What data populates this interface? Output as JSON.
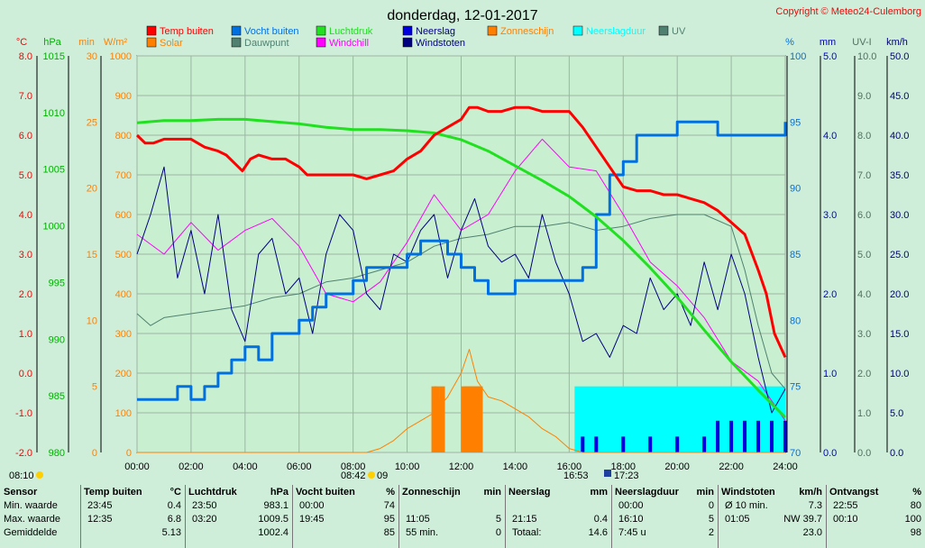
{
  "header": {
    "title": "donderdag, 12-01-2017",
    "copyright": "Copyright © Meteo24-Culemborg"
  },
  "legend": [
    {
      "label": "Temp buiten",
      "color": "#ff0000"
    },
    {
      "label": "Vocht buiten",
      "color": "#0070e0"
    },
    {
      "label": "Luchtdruk",
      "color": "#20e020"
    },
    {
      "label": "Neerslag",
      "color": "#0000dd"
    },
    {
      "label": "Zonneschijn",
      "color": "#ff8000"
    },
    {
      "label": "Neerslagduur",
      "color": "#00ffff"
    },
    {
      "label": "UV",
      "color": "#508070"
    },
    {
      "label": "Solar",
      "color": "#ff8000"
    },
    {
      "label": "Dauwpunt",
      "color": "#508070"
    },
    {
      "label": "Windchill",
      "color": "#ff00ff"
    },
    {
      "label": "Windstoten",
      "color": "#000080"
    }
  ],
  "axes": {
    "temp": {
      "unit": "°C",
      "ticks": [
        "8.0",
        "7.0",
        "6.0",
        "5.0",
        "4.0",
        "3.0",
        "2.0",
        "1.0",
        "0.0",
        "-1.0",
        "-2.0"
      ],
      "color": "#ff0000"
    },
    "pressure": {
      "unit": "hPa",
      "ticks": [
        "1015",
        "1010",
        "1005",
        "1000",
        "995",
        "990",
        "985",
        "980"
      ],
      "color": "#00b000"
    },
    "sunmin": {
      "unit": "min",
      "ticks": [
        "30",
        "25",
        "20",
        "15",
        "10",
        "5",
        "0"
      ],
      "color": "#ff8000"
    },
    "solar": {
      "unit": "W/m²",
      "ticks": [
        "1000",
        "900",
        "800",
        "700",
        "600",
        "500",
        "400",
        "300",
        "200",
        "100",
        "0"
      ],
      "color": "#ff8000"
    },
    "humidity": {
      "unit": "%",
      "ticks": [
        "100",
        "95",
        "90",
        "85",
        "80",
        "75",
        "70"
      ],
      "color": "#0070e0"
    },
    "rain": {
      "unit": "mm",
      "ticks": [
        "5.0",
        "4.0",
        "3.0",
        "2.0",
        "1.0",
        "0.0"
      ],
      "color": "#0000cc"
    },
    "uv": {
      "unit": "UV-I",
      "ticks": [
        "10.0",
        "9.0",
        "8.0",
        "7.0",
        "6.0",
        "5.0",
        "4.0",
        "3.0",
        "2.0",
        "1.0",
        "0.0"
      ],
      "color": "#507060"
    },
    "wind": {
      "unit": "km/h",
      "ticks": [
        "50.0",
        "45.0",
        "40.0",
        "35.0",
        "30.0",
        "25.0",
        "20.0",
        "15.0",
        "10.0",
        "5.0",
        "0.0"
      ],
      "color": "#000080"
    },
    "time_ticks": [
      "00:00",
      "02:00",
      "04:00",
      "06:00",
      "08:00",
      "10:00",
      "12:00",
      "14:00",
      "16:00",
      "18:00",
      "20:00",
      "22:00",
      "24:00"
    ]
  },
  "sun_markers": {
    "sunrise": "08:42",
    "sun_day": "09",
    "sunset": "16:53",
    "moon": "17:23",
    "moonrise": "08:10"
  },
  "chart_data": {
    "type": "line",
    "title": "donderdag, 12-01-2017",
    "x_unit": "hours",
    "x_range": [
      0,
      24
    ],
    "series": [
      {
        "name": "Temp buiten",
        "unit": "°C",
        "color": "#ff0000",
        "x": [
          0,
          0.3,
          0.6,
          1.0,
          1.5,
          2.0,
          2.5,
          3.0,
          3.3,
          3.6,
          3.9,
          4.2,
          4.5,
          5.0,
          5.5,
          6.0,
          6.3,
          6.6,
          7.0,
          7.5,
          8.0,
          8.5,
          9.0,
          9.5,
          10.0,
          10.5,
          11.0,
          11.5,
          12.0,
          12.3,
          12.6,
          13.0,
          13.5,
          14.0,
          14.5,
          15.0,
          15.5,
          16.0,
          16.5,
          17.0,
          17.5,
          18.0,
          18.5,
          19.0,
          19.5,
          20.0,
          20.5,
          21.0,
          21.5,
          22.0,
          22.5,
          23.0,
          23.3,
          23.6,
          24.0
        ],
        "y": [
          6.0,
          5.8,
          5.8,
          5.9,
          5.9,
          5.9,
          5.7,
          5.6,
          5.5,
          5.3,
          5.1,
          5.4,
          5.5,
          5.4,
          5.4,
          5.2,
          5.0,
          5.0,
          5.0,
          5.0,
          5.0,
          4.9,
          5.0,
          5.1,
          5.4,
          5.6,
          6.0,
          6.2,
          6.4,
          6.7,
          6.7,
          6.6,
          6.6,
          6.7,
          6.7,
          6.6,
          6.6,
          6.6,
          6.2,
          5.7,
          5.2,
          4.7,
          4.6,
          4.6,
          4.5,
          4.5,
          4.4,
          4.3,
          4.1,
          3.8,
          3.5,
          2.6,
          2.0,
          1.0,
          0.4
        ]
      },
      {
        "name": "Vocht buiten",
        "unit": "%",
        "color": "#0070e0",
        "x": [
          0,
          1.0,
          1.5,
          2.0,
          2.5,
          3.0,
          3.5,
          4.0,
          4.5,
          5.0,
          5.5,
          6.0,
          6.5,
          7.0,
          7.5,
          8.0,
          8.5,
          9.0,
          9.5,
          10.0,
          10.5,
          11.0,
          11.5,
          12.0,
          12.5,
          13.0,
          13.5,
          14.0,
          14.5,
          15.0,
          15.5,
          16.0,
          16.5,
          17.0,
          17.5,
          18.0,
          18.5,
          19.0,
          19.5,
          20.0,
          20.5,
          21.0,
          21.5,
          22.0,
          22.5,
          23.0,
          23.5,
          24.0
        ],
        "y": [
          74,
          74,
          75,
          74,
          75,
          76,
          77,
          78,
          77,
          79,
          79,
          80,
          81,
          82,
          82,
          83,
          84,
          84,
          84,
          85,
          86,
          86,
          85,
          84,
          83,
          82,
          82,
          83,
          83,
          83,
          83,
          83,
          84,
          88,
          91,
          92,
          94,
          94,
          94,
          95,
          95,
          95,
          94,
          94,
          94,
          94,
          94,
          95
        ]
      },
      {
        "name": "Luchtdruk",
        "unit": "hPa",
        "color": "#20e020",
        "x": [
          0,
          1,
          2,
          3,
          4,
          5,
          6,
          7,
          8,
          9,
          10,
          11,
          12,
          13,
          14,
          15,
          16,
          17,
          18,
          19,
          20,
          21,
          22,
          23,
          24
        ],
        "y": [
          1009.1,
          1009.3,
          1009.3,
          1009.4,
          1009.4,
          1009.2,
          1009.0,
          1008.7,
          1008.5,
          1008.5,
          1008.4,
          1008.2,
          1007.6,
          1006.6,
          1005.3,
          1004.0,
          1002.6,
          1000.8,
          998.7,
          996.3,
          993.7,
          990.8,
          988.0,
          985.5,
          983.1
        ]
      },
      {
        "name": "Dauwpunt",
        "unit": "°C",
        "color": "#508070",
        "x": [
          0,
          0.5,
          1,
          2,
          3,
          4,
          5,
          6,
          7,
          8,
          9,
          10,
          11,
          12,
          13,
          14,
          15,
          16,
          17,
          18,
          19,
          20,
          21,
          22,
          22.5,
          23,
          23.5,
          24
        ],
        "y": [
          1.5,
          1.2,
          1.4,
          1.5,
          1.6,
          1.7,
          1.9,
          2.0,
          2.3,
          2.4,
          2.6,
          2.8,
          3.2,
          3.4,
          3.5,
          3.7,
          3.7,
          3.8,
          3.6,
          3.7,
          3.9,
          4.0,
          4.0,
          3.7,
          2.6,
          1.2,
          0.0,
          -0.4
        ]
      },
      {
        "name": "Windchill",
        "unit": "°C",
        "color": "#ff00ff",
        "x": [
          0,
          1,
          2,
          3,
          4,
          5,
          6,
          7,
          8,
          9,
          10,
          11,
          12,
          13,
          14,
          15,
          16,
          17,
          18,
          19,
          20,
          21,
          22,
          23,
          24
        ],
        "y": [
          3.5,
          3.0,
          3.8,
          3.1,
          3.6,
          3.9,
          3.2,
          2.0,
          1.8,
          2.3,
          3.3,
          4.5,
          3.6,
          4.0,
          5.1,
          5.9,
          5.2,
          5.1,
          4.0,
          2.8,
          2.2,
          1.4,
          0.3,
          -0.2,
          -1.2
        ]
      },
      {
        "name": "Windstoten",
        "unit": "km/h",
        "color": "#000080",
        "x": [
          0,
          0.5,
          1,
          1.5,
          2,
          2.5,
          3,
          3.5,
          4,
          4.5,
          5,
          5.5,
          6,
          6.5,
          7,
          7.5,
          8,
          8.5,
          9,
          9.5,
          10,
          10.5,
          11,
          11.5,
          12,
          12.5,
          13,
          13.5,
          14,
          14.5,
          15,
          15.5,
          16,
          16.5,
          17,
          17.5,
          18,
          18.5,
          19,
          19.5,
          20,
          20.5,
          21,
          21.5,
          22,
          22.5,
          23,
          23.5,
          24
        ],
        "y": [
          25,
          30,
          36,
          22,
          28,
          20,
          30,
          18,
          14,
          25,
          27,
          20,
          22,
          15,
          25,
          30,
          28,
          20,
          18,
          25,
          24,
          28,
          30,
          22,
          28,
          32,
          26,
          24,
          25,
          22,
          30,
          24,
          20,
          14,
          15,
          12,
          16,
          15,
          22,
          18,
          20,
          16,
          24,
          18,
          25,
          20,
          12,
          5,
          8
        ]
      },
      {
        "name": "Solar",
        "unit": "W/m²",
        "color": "#ff8000",
        "x": [
          0,
          8.5,
          9.0,
          9.5,
          10.0,
          10.5,
          11.0,
          11.5,
          12.0,
          12.3,
          12.6,
          13.0,
          13.5,
          14.0,
          14.5,
          15.0,
          15.5,
          16.0,
          16.5,
          24
        ],
        "y": [
          0,
          0,
          10,
          30,
          60,
          80,
          100,
          140,
          200,
          260,
          180,
          140,
          130,
          110,
          90,
          60,
          40,
          10,
          0,
          0
        ]
      },
      {
        "name": "Zonneschijn",
        "unit": "min",
        "color": "#ff8000",
        "x": [
          11.0,
          11.1,
          11.2,
          11.3,
          12.1,
          12.2,
          12.3,
          12.4,
          12.5,
          12.6,
          12.7
        ],
        "y": [
          5,
          5,
          4,
          5,
          5,
          5,
          5,
          5,
          5,
          5,
          5
        ]
      },
      {
        "name": "Neerslagduur",
        "unit": "min",
        "color": "#00ffff",
        "x": [
          16.2,
          24
        ],
        "y": [
          5,
          5
        ]
      },
      {
        "name": "Neerslag",
        "unit": "mm",
        "color": "#0000dd",
        "x": [
          16.5,
          17,
          18,
          19,
          20,
          21,
          21.5,
          22,
          22.5,
          23,
          23.5,
          24
        ],
        "y": [
          0.2,
          0.2,
          0.2,
          0.2,
          0.2,
          0.2,
          0.4,
          0.4,
          0.4,
          0.4,
          0.4,
          0.4
        ]
      }
    ]
  },
  "stats": {
    "columns": [
      {
        "title": "Sensor",
        "unit": "",
        "rows": [
          [
            "Min. waarde",
            ""
          ],
          [
            "Max. waarde",
            ""
          ],
          [
            "Gemiddelde",
            ""
          ]
        ]
      },
      {
        "title": "Temp buiten",
        "unit": "°C",
        "rows": [
          [
            "23:45",
            "0.4"
          ],
          [
            "12:35",
            "6.8"
          ],
          [
            "",
            "5.13"
          ]
        ]
      },
      {
        "title": "Luchtdruk",
        "unit": "hPa",
        "rows": [
          [
            "23:50",
            "983.1"
          ],
          [
            "03:20",
            "1009.5"
          ],
          [
            "",
            "1002.4"
          ]
        ]
      },
      {
        "title": "Vocht buiten",
        "unit": "%",
        "rows": [
          [
            "00:00",
            "74"
          ],
          [
            "19:45",
            "95"
          ],
          [
            "",
            "85"
          ]
        ]
      },
      {
        "title": "Zonneschijn",
        "unit": "min",
        "rows": [
          [
            "",
            ""
          ],
          [
            "11:05",
            "5"
          ],
          [
            "55 min.",
            "0"
          ]
        ]
      },
      {
        "title": "Neerslag",
        "unit": "mm",
        "rows": [
          [
            "",
            ""
          ],
          [
            "21:15",
            "0.4"
          ],
          [
            "Totaal:",
            "14.6"
          ]
        ]
      },
      {
        "title": "Neerslagduur",
        "unit": "min",
        "rows": [
          [
            "00:00",
            "0"
          ],
          [
            "16:10",
            "5"
          ],
          [
            "7:45 u",
            "2"
          ]
        ]
      },
      {
        "title": "Windstoten",
        "unit": "km/h",
        "rows": [
          [
            "Ø 10 min.",
            "7.3"
          ],
          [
            "01:05",
            "NW 39.7"
          ],
          [
            "",
            "23.0"
          ]
        ]
      },
      {
        "title": "Ontvangst",
        "unit": "%",
        "rows": [
          [
            "22:55",
            "80"
          ],
          [
            "00:10",
            "100"
          ],
          [
            "",
            "98"
          ]
        ]
      }
    ]
  }
}
